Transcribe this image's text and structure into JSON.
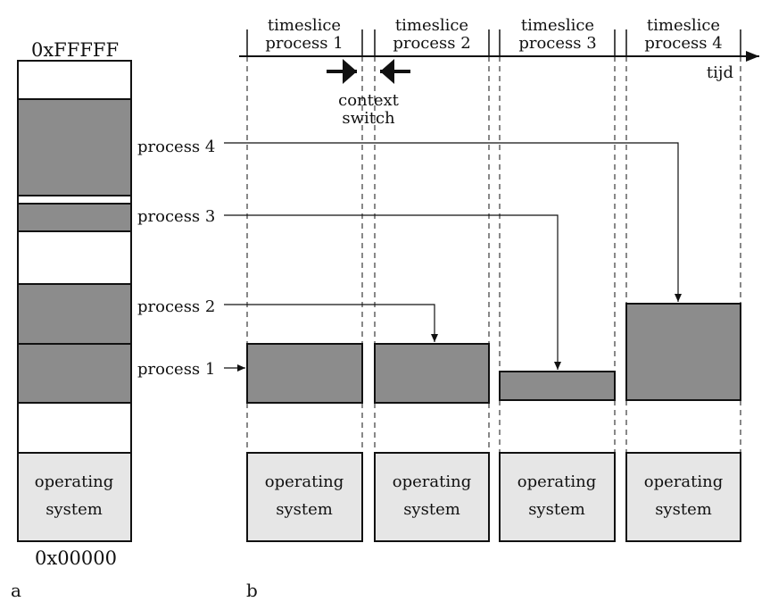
{
  "memory": {
    "top_address": "0xFFFFF",
    "bottom_address": "0x00000",
    "os_line1": "operating",
    "os_line2": "system"
  },
  "process_labels": [
    "process 4",
    "process 3",
    "process 2",
    "process 1"
  ],
  "timeslices": [
    {
      "line1": "timeslice",
      "line2": "process 1"
    },
    {
      "line1": "timeslice",
      "line2": "process 2"
    },
    {
      "line1": "timeslice",
      "line2": "process 3"
    },
    {
      "line1": "timeslice",
      "line2": "process 4"
    }
  ],
  "time_axis_label": "tijd",
  "context_switch": {
    "line1": "context",
    "line2": "switch"
  },
  "os_boxes": [
    {
      "line1": "operating",
      "line2": "system"
    },
    {
      "line1": "operating",
      "line2": "system"
    },
    {
      "line1": "operating",
      "line2": "system"
    },
    {
      "line1": "operating",
      "line2": "system"
    }
  ],
  "panel_labels": {
    "a": "a",
    "b": "b"
  },
  "colors": {
    "process_fill": "#8c8c8c",
    "os_fill": "#e6e6e6",
    "line": "#111111"
  }
}
